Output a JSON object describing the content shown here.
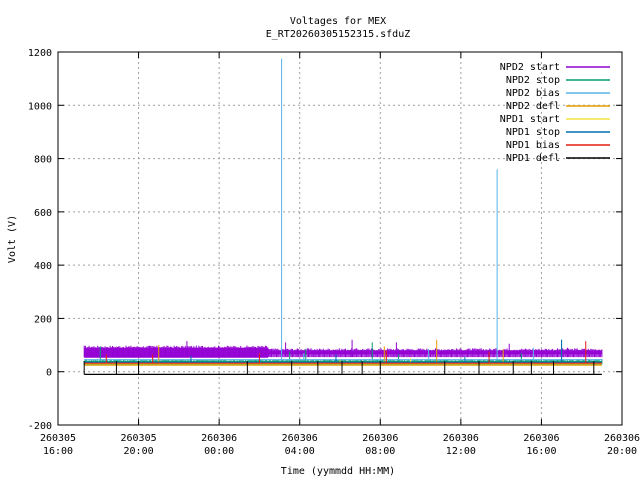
{
  "chart_data": {
    "type": "line",
    "title": "Voltages for MEX",
    "subtitle": "E_RT20260305152315.sfduZ",
    "xlabel": "Time (yymmdd HH:MM)",
    "ylabel": "Volt (V)",
    "xlim_hours": [
      16,
      44
    ],
    "ylim": [
      -200,
      1200
    ],
    "yticks": [
      -200,
      0,
      200,
      400,
      600,
      800,
      1000,
      1200
    ],
    "xticks": [
      {
        "hour": 16,
        "date": "260305",
        "time": "16:00"
      },
      {
        "hour": 20,
        "date": "260305",
        "time": "20:00"
      },
      {
        "hour": 24,
        "date": "260306",
        "time": "00:00"
      },
      {
        "hour": 28,
        "date": "260306",
        "time": "04:00"
      },
      {
        "hour": 32,
        "date": "260306",
        "time": "08:00"
      },
      {
        "hour": 36,
        "date": "260306",
        "time": "12:00"
      },
      {
        "hour": 40,
        "date": "260306",
        "time": "16:00"
      },
      {
        "hour": 44,
        "date": "260306",
        "time": "20:00"
      }
    ],
    "grid": true,
    "legend_position": "top-right",
    "data_range_hours": [
      17.3,
      43.0
    ],
    "series": [
      {
        "name": "NPD2 start",
        "color": "#9400d3",
        "base": [
          [
            17.3,
            55
          ],
          [
            26.4,
            55
          ],
          [
            26.5,
            68
          ],
          [
            43.0,
            68
          ]
        ],
        "band": [
          [
            17.3,
            90
          ],
          [
            26.4,
            90
          ],
          [
            26.5,
            80
          ],
          [
            43.0,
            80
          ]
        ],
        "spikes": [
          [
            22.4,
            115
          ],
          [
            27.3,
            110
          ],
          [
            30.6,
            120
          ],
          [
            32.8,
            110
          ],
          [
            38.4,
            105
          ],
          [
            41.3,
            90
          ]
        ]
      },
      {
        "name": "NPD2 stop",
        "color": "#009e73",
        "base": [
          [
            17.3,
            28
          ],
          [
            43.0,
            28
          ]
        ],
        "band": [
          [
            17.3,
            40
          ],
          [
            43.0,
            40
          ]
        ],
        "spikes": [
          [
            18.1,
            95
          ],
          [
            27.5,
            75
          ],
          [
            28.3,
            85
          ],
          [
            31.6,
            110
          ],
          [
            32.9,
            65
          ],
          [
            39.0,
            70
          ],
          [
            41.0,
            120
          ]
        ]
      },
      {
        "name": "NPD2 bias",
        "color": "#56b4e9",
        "base": [
          [
            17.3,
            45
          ],
          [
            43.0,
            45
          ]
        ],
        "band": [],
        "spikes": [
          [
            27.1,
            1175
          ],
          [
            28.2,
            70
          ],
          [
            34.4,
            85
          ],
          [
            37.8,
            760
          ],
          [
            39.6,
            90
          ]
        ]
      },
      {
        "name": "NPD2 defl",
        "color": "#e69f00",
        "base": [
          [
            17.3,
            25
          ],
          [
            43.0,
            25
          ]
        ],
        "band": [],
        "spikes": [
          [
            21.0,
            100
          ],
          [
            32.2,
            95
          ],
          [
            34.8,
            120
          ],
          [
            38.1,
            85
          ]
        ]
      },
      {
        "name": "NPD1 start",
        "color": "#f0e442",
        "base": [
          [
            17.3,
            30
          ],
          [
            43.0,
            30
          ]
        ],
        "band": [],
        "spikes": [
          [
            30.0,
            45
          ],
          [
            33.5,
            50
          ]
        ]
      },
      {
        "name": "NPD1 stop",
        "color": "#0072b2",
        "base": [
          [
            17.3,
            35
          ],
          [
            43.0,
            35
          ]
        ],
        "band": [],
        "spikes": [
          [
            22.6,
            60
          ],
          [
            29.8,
            65
          ],
          [
            36.2,
            55
          ],
          [
            41.0,
            120
          ]
        ]
      },
      {
        "name": "NPD1 bias",
        "color": "#e51e10",
        "base": [
          [
            17.3,
            32
          ],
          [
            43.0,
            32
          ]
        ],
        "band": [],
        "spikes": [
          [
            18.4,
            65
          ],
          [
            20.7,
            65
          ],
          [
            26.0,
            70
          ],
          [
            32.3,
            80
          ],
          [
            37.4,
            75
          ],
          [
            42.2,
            115
          ]
        ]
      },
      {
        "name": "NPD1 defl",
        "color": "#000000",
        "base": [
          [
            17.3,
            -10
          ],
          [
            43.0,
            -10
          ]
        ],
        "band": [],
        "spikes": [
          [
            17.3,
            40
          ],
          [
            18.9,
            40
          ],
          [
            20.0,
            40
          ],
          [
            25.4,
            40
          ],
          [
            27.6,
            40
          ],
          [
            28.9,
            40
          ],
          [
            30.1,
            40
          ],
          [
            31.1,
            40
          ],
          [
            32.0,
            40
          ],
          [
            35.2,
            40
          ],
          [
            36.9,
            40
          ],
          [
            38.6,
            40
          ],
          [
            39.5,
            40
          ],
          [
            40.6,
            40
          ],
          [
            42.6,
            40
          ]
        ]
      }
    ]
  }
}
